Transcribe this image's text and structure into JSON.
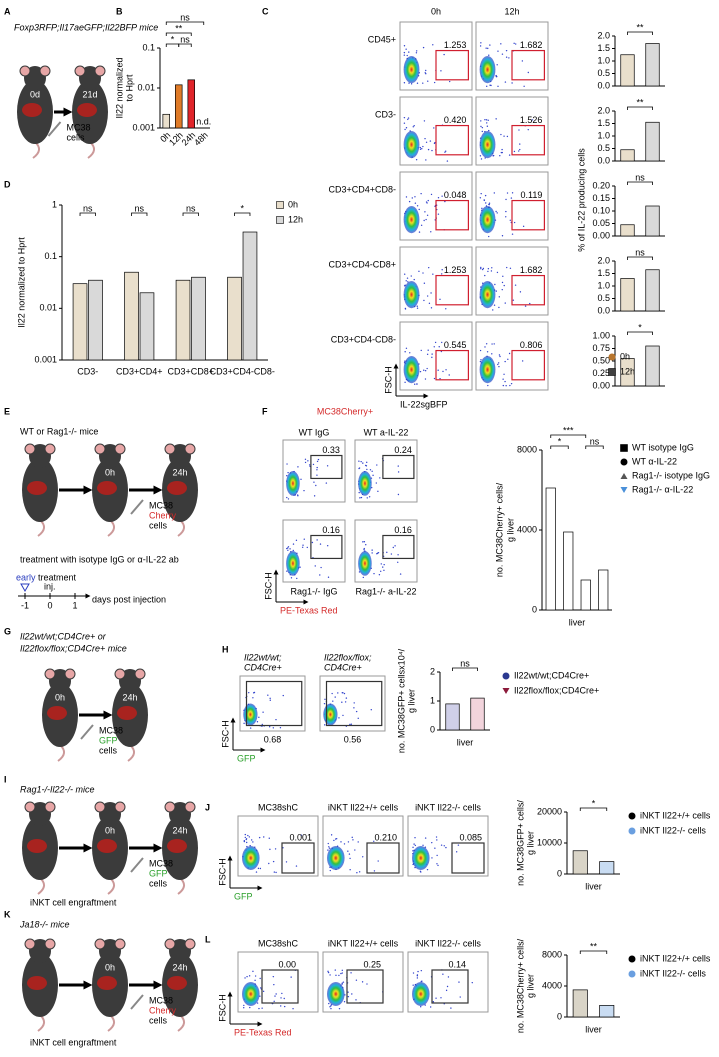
{
  "A": {
    "letter": "A",
    "title": "Foxp3RFP;Il17aeGFP;Il22BFP mice",
    "start": "0d",
    "end": "21d",
    "injection": {
      "lines": [
        "MC38",
        "cells"
      ],
      "colors": [
        "#000000",
        "#000000"
      ]
    }
  },
  "B": {
    "letter": "B",
    "chart": {
      "type": "bar",
      "log": true,
      "ylabel": [
        "Il22 normalized",
        "to Hprt"
      ],
      "ylim": [
        0.001,
        0.1
      ],
      "yticks": [
        0.001,
        0.01,
        0.1
      ],
      "categories": [
        "0h",
        "12h",
        "24h",
        "48h"
      ],
      "values": [
        0.0022,
        0.012,
        0.016,
        null
      ],
      "value_labels": [
        null,
        null,
        null,
        "n.d."
      ],
      "colors": [
        "#e9dfcc",
        "#e07b28",
        "#e0242a",
        null
      ],
      "significance": [
        {
          "between": [
            0,
            3
          ],
          "label": "ns"
        },
        {
          "between": [
            0,
            2
          ],
          "label": "**"
        },
        {
          "between": [
            0,
            1
          ],
          "label": "*"
        },
        {
          "between": [
            1,
            2
          ],
          "label": "ns"
        }
      ]
    }
  },
  "C": {
    "letter": "C",
    "columns": [
      "0h",
      "12h"
    ],
    "xlabel": "IL-22sgBFP",
    "ylabel": "FSC-H",
    "bar_ylabel": "% of IL-22 producing cells",
    "legend": [
      {
        "name": "0h",
        "color": "#b8762e",
        "fill": "#e9dfcc",
        "marker": "circle"
      },
      {
        "name": "12h",
        "color": "#404040",
        "fill": "#d9d9d9",
        "marker": "square"
      }
    ],
    "rows": [
      {
        "label": "CD45+",
        "gates": [
          "1.253",
          "1.682"
        ],
        "chart": {
          "type": "bar",
          "ylim": [
            0,
            2
          ],
          "yticks": [
            {
              "value": 0,
              "label": "0.0"
            },
            {
              "value": 0.5,
              "label": "0.5"
            },
            {
              "value": 1,
              "label": "1.0"
            },
            {
              "value": 1.5,
              "label": "1.5"
            },
            {
              "value": 2,
              "label": "2.0"
            }
          ],
          "values": [
            1.25,
            1.7
          ],
          "significance": [
            {
              "between": [
                0,
                1
              ],
              "label": "**"
            }
          ]
        }
      },
      {
        "label": "CD3-",
        "gates": [
          "0.420",
          "1.526"
        ],
        "chart": {
          "type": "bar",
          "ylim": [
            0,
            2
          ],
          "yticks": [
            {
              "value": 0,
              "label": "0.0"
            },
            {
              "value": 0.5,
              "label": "0.5"
            },
            {
              "value": 1,
              "label": "1.0"
            },
            {
              "value": 1.5,
              "label": "1.5"
            },
            {
              "value": 2,
              "label": "2.0"
            }
          ],
          "values": [
            0.45,
            1.55
          ],
          "significance": [
            {
              "between": [
                0,
                1
              ],
              "label": "**"
            }
          ]
        }
      },
      {
        "label": "CD3+CD4+CD8-",
        "gates": [
          "0.048",
          "0.119"
        ],
        "chart": {
          "type": "bar",
          "ylim": [
            0,
            0.2
          ],
          "yticks": [
            {
              "value": 0,
              "label": "0.00"
            },
            {
              "value": 0.05,
              "label": "0.05"
            },
            {
              "value": 0.1,
              "label": "0.10"
            },
            {
              "value": 0.15,
              "label": "0.15"
            },
            {
              "value": 0.2,
              "label": "0.20"
            }
          ],
          "values": [
            0.045,
            0.12
          ],
          "significance": [
            {
              "between": [
                0,
                1
              ],
              "label": "ns"
            }
          ]
        }
      },
      {
        "label": "CD3+CD4-CD8+",
        "gates": [
          "1.253",
          "1.682"
        ],
        "chart": {
          "type": "bar",
          "ylim": [
            0,
            2
          ],
          "yticks": [
            {
              "value": 0,
              "label": "0.0"
            },
            {
              "value": 0.5,
              "label": "0.5"
            },
            {
              "value": 1,
              "label": "1.0"
            },
            {
              "value": 1.5,
              "label": "1.5"
            },
            {
              "value": 2,
              "label": "2.0"
            }
          ],
          "values": [
            1.3,
            1.65
          ],
          "significance": [
            {
              "between": [
                0,
                1
              ],
              "label": "ns"
            }
          ]
        }
      },
      {
        "label": "CD3+CD4-CD8-",
        "gates": [
          "0.545",
          "0.806"
        ],
        "chart": {
          "type": "bar",
          "ylim": [
            0,
            1
          ],
          "yticks": [
            {
              "value": 0,
              "label": "0.00"
            },
            {
              "value": 0.25,
              "label": "0.25"
            },
            {
              "value": 0.5,
              "label": "0.50"
            },
            {
              "value": 0.75,
              "label": "0.75"
            },
            {
              "value": 1,
              "label": "1.00"
            }
          ],
          "values": [
            0.55,
            0.8
          ],
          "significance": [
            {
              "between": [
                0,
                1
              ],
              "label": "*"
            }
          ]
        }
      }
    ]
  },
  "D": {
    "letter": "D",
    "chart": {
      "type": "bar",
      "log": true,
      "ylabel": "Il22 normalized to Hprt",
      "ylim": [
        0.001,
        1
      ],
      "yticks": [
        0.001,
        0.01,
        0.1,
        1
      ],
      "categories": [
        "CD3-",
        "CD3+CD4+",
        "CD3+CD8+",
        "CD3+CD4-CD8-"
      ],
      "series": [
        {
          "name": "0h",
          "color": "#e9dfcc",
          "values": [
            0.03,
            0.05,
            0.035,
            0.04
          ]
        },
        {
          "name": "12h",
          "color": "#d9d9d9",
          "values": [
            0.035,
            0.02,
            0.04,
            0.3
          ]
        }
      ],
      "significance": [
        "ns",
        "ns",
        "ns",
        "*"
      ]
    }
  },
  "E": {
    "letter": "E",
    "title": "WT or Rag1-/- mice",
    "times": [
      "0h",
      "24h"
    ],
    "injection": {
      "lines": [
        "MC38",
        "Cherry",
        "cells"
      ],
      "colors": [
        "#000000",
        "#d42a2a",
        "#000000"
      ]
    },
    "treatment": "treatment with isotype IgG or α-IL-22 ab",
    "timeline": {
      "early": "early",
      "treatment": "treatment",
      "inj": "inj.",
      "days": [
        -1,
        0,
        1
      ],
      "axis": "days post injection"
    }
  },
  "F": {
    "letter": "F",
    "title": "MC38Cherry+",
    "plots": [
      {
        "label": "WT IgG",
        "gate": "0.33"
      },
      {
        "label": "WT a-IL-22",
        "gate": "0.24"
      },
      {
        "label": "Rag1-/- IgG",
        "gate": "0.16"
      },
      {
        "label": "Rag1-/- a-IL-22",
        "gate": "0.16"
      }
    ],
    "ylabel": "FSC-H",
    "xlabel": "PE-Texas Red",
    "chart": {
      "type": "bar",
      "ylabel": [
        "no. MC38Cherry+ cells/",
        "g liver"
      ],
      "xlabel": "liver",
      "ylim": [
        0,
        8000
      ],
      "yticks": [
        0,
        4000,
        8000
      ],
      "fill": "#ffffff",
      "series": [
        {
          "name": "WT isotype IgG",
          "color": "#000000",
          "marker": "square",
          "values": [
            6100
          ]
        },
        {
          "name": "WT α-IL-22",
          "color": "#000000",
          "marker": "circle",
          "values": [
            3900
          ]
        },
        {
          "name": "Rag1-/- isotype IgG",
          "color": "#555555",
          "marker": "triangle",
          "values": [
            1500
          ]
        },
        {
          "name": "Rag1-/- α-IL-22",
          "color": "#4a90d9",
          "marker": "triangle-down",
          "values": [
            2000
          ]
        }
      ],
      "significance": [
        {
          "between": [
            0,
            1
          ],
          "label": "*"
        },
        {
          "between": [
            0,
            2
          ],
          "label": "***"
        },
        {
          "between": [
            2,
            3
          ],
          "label": "ns"
        }
      ]
    }
  },
  "G": {
    "letter": "G",
    "title": [
      "Il22wt/wt;CD4Cre+ or",
      "Il22flox/flox;CD4Cre+ mice"
    ],
    "times": [
      "0h",
      "24h"
    ],
    "injection": {
      "lines": [
        "MC38",
        "GFP",
        "cells"
      ],
      "colors": [
        "#000000",
        "#2aa02a",
        "#000000"
      ]
    }
  },
  "H": {
    "letter": "H",
    "plots": [
      {
        "label": [
          "Il22wt/wt;",
          "CD4Cre+"
        ],
        "gate": "0.68"
      },
      {
        "label": [
          "Il22flox/flox;",
          "CD4Cre+"
        ],
        "gate": "0.56"
      }
    ],
    "ylabel": "FSC-H",
    "xlabel": "GFP",
    "chart": {
      "type": "bar",
      "ylabel": [
        "no. MC38GFP+ cellsx10⁴/",
        "g liver"
      ],
      "xlabel": "liver",
      "ylim": [
        0,
        2
      ],
      "yticks": [
        0,
        1,
        2
      ],
      "series": [
        {
          "name": "Il22wt/wt;CD4Cre+",
          "color": "#2b3990",
          "fill": "#cfcfe8",
          "marker": "circle",
          "values": [
            0.9
          ]
        },
        {
          "name": "Il22flox/flox;CD4Cre+",
          "color": "#8b1a3a",
          "fill": "#f2d4dc",
          "marker": "triangle-down",
          "values": [
            1.1
          ]
        }
      ],
      "significance": [
        {
          "between": [
            0,
            1
          ],
          "label": "ns"
        }
      ]
    }
  },
  "I": {
    "letter": "I",
    "title": "Rag1-/-Il22-/- mice",
    "times": [
      "0h",
      "24h"
    ],
    "injection": {
      "lines": [
        "MC38",
        "GFP",
        "cells"
      ],
      "colors": [
        "#000000",
        "#2aa02a",
        "#000000"
      ]
    },
    "engraftment": "iNKT cell engraftment"
  },
  "J": {
    "letter": "J",
    "plots": [
      {
        "label": "MC38shC",
        "gate": "0.001"
      },
      {
        "label": "iNKT Il22+/+ cells",
        "gate": "0.210"
      },
      {
        "label": "iNKT Il22-/- cells",
        "gate": "0.085"
      }
    ],
    "ylabel": "FSC-H",
    "xlabel": "GFP",
    "chart": {
      "type": "bar",
      "ylabel": [
        "no. MC38GFP+ cells/",
        "g liver"
      ],
      "xlabel": "liver",
      "ylim": [
        0,
        20000
      ],
      "yticks": [
        0,
        10000,
        20000
      ],
      "series": [
        {
          "name": "iNKT Il22+/+ cells",
          "color": "#000000",
          "fill": "#d9d4c7",
          "marker": "circle",
          "values": [
            7500
          ]
        },
        {
          "name": "iNKT Il22-/- cells",
          "color": "#6a9fe0",
          "fill": "#c9dcf2",
          "marker": "circle",
          "values": [
            4000
          ]
        }
      ],
      "significance": [
        {
          "between": [
            0,
            1
          ],
          "label": "*"
        }
      ]
    }
  },
  "K": {
    "letter": "K",
    "title": "Ja18-/- mice",
    "times": [
      "0h",
      "24h"
    ],
    "injection": {
      "lines": [
        "MC38",
        "Cherry",
        "cells"
      ],
      "colors": [
        "#000000",
        "#d42a2a",
        "#000000"
      ]
    },
    "engraftment": "iNKT cell engraftment"
  },
  "L": {
    "letter": "L",
    "plots": [
      {
        "label": "MC38shC",
        "gate": "0.00"
      },
      {
        "label": "iNKT Il22+/+ cells",
        "gate": "0.25"
      },
      {
        "label": "iNKT Il22-/- cells",
        "gate": "0.14"
      }
    ],
    "ylabel": "FSC-H",
    "xlabel": "PE-Texas Red",
    "chart": {
      "type": "bar",
      "ylabel": [
        "no. MC38Cherry+ cells/",
        "g liver"
      ],
      "xlabel": "liver",
      "ylim": [
        0,
        8000
      ],
      "yticks": [
        0,
        4000,
        8000
      ],
      "series": [
        {
          "name": "iNKT Il22+/+ cells",
          "color": "#000000",
          "fill": "#d9d4c7",
          "marker": "circle",
          "values": [
            3500
          ]
        },
        {
          "name": "iNKT Il22-/- cells",
          "color": "#6a9fe0",
          "fill": "#c9dcf2",
          "marker": "circle",
          "values": [
            1500
          ]
        }
      ],
      "significance": [
        {
          "between": [
            0,
            1
          ],
          "label": "**"
        }
      ]
    }
  }
}
